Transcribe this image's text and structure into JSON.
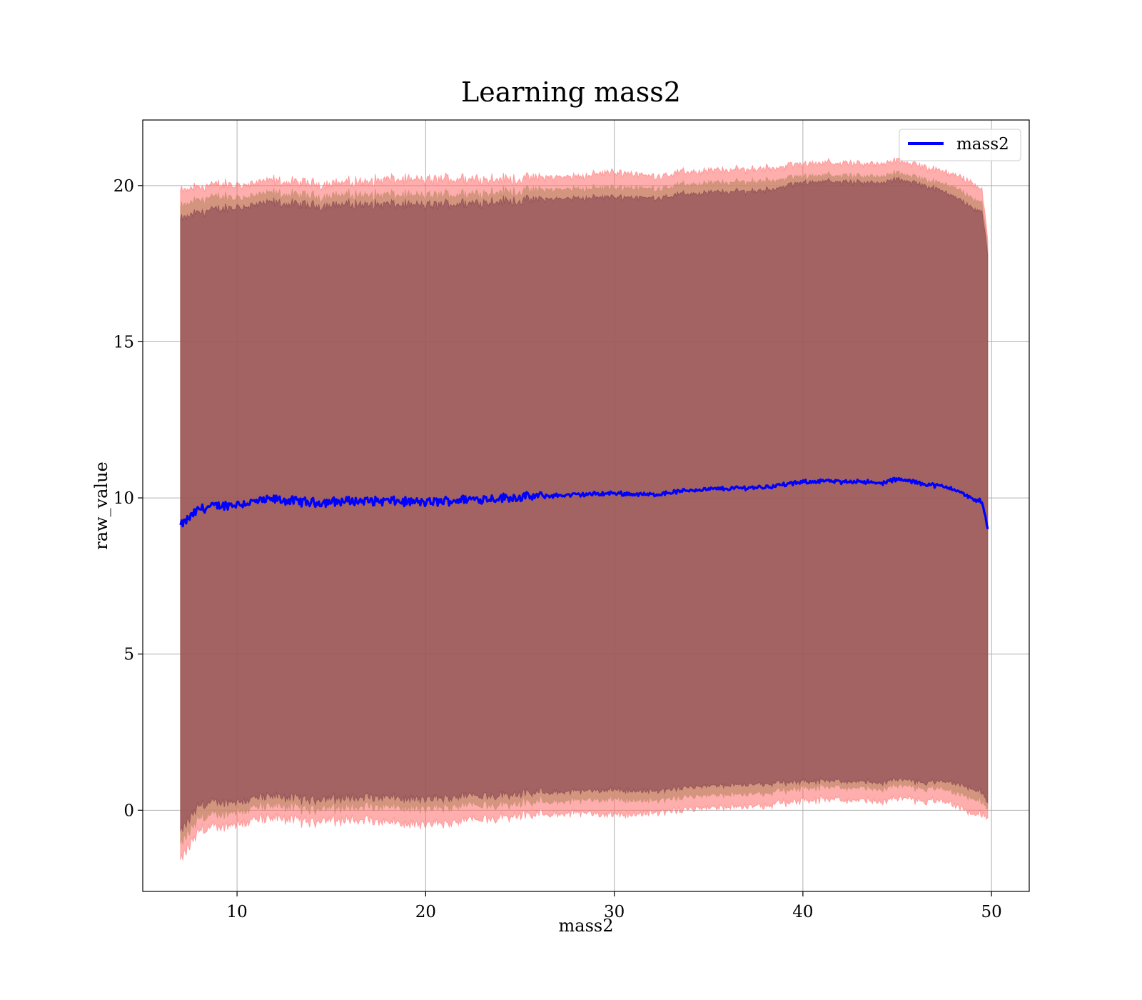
{
  "chart_data": {
    "type": "line",
    "title": "Learning mass2",
    "xlabel": "mass2",
    "ylabel": "raw_value",
    "xlim": [
      5,
      52
    ],
    "ylim": [
      -2.6,
      22.1
    ],
    "xticks": [
      10,
      20,
      30,
      40,
      50
    ],
    "yticks": [
      0,
      5,
      10,
      15,
      20
    ],
    "grid": true,
    "legend": {
      "placement": "top-right",
      "entries": [
        "mass2"
      ]
    },
    "colors": {
      "line": "#0000ff",
      "band_outer": "#ff6b6b",
      "band_middle": "#c28a6a",
      "band_inner": "#7a3a4a"
    },
    "x_range": [
      7,
      49.8
    ],
    "series": [
      {
        "name": "mass2",
        "x": [
          7,
          8,
          9,
          10,
          12,
          14,
          16,
          18,
          20,
          22,
          24,
          26,
          28,
          30,
          32,
          34,
          36,
          38,
          40,
          41,
          42,
          43,
          44,
          45,
          46,
          47,
          48,
          49,
          49.5,
          49.8
        ],
        "values": [
          9.1,
          9.65,
          9.75,
          9.8,
          9.95,
          9.85,
          9.9,
          9.9,
          9.85,
          9.95,
          10.0,
          10.05,
          10.1,
          10.15,
          10.1,
          10.25,
          10.3,
          10.35,
          10.5,
          10.55,
          10.5,
          10.55,
          10.45,
          10.6,
          10.5,
          10.4,
          10.3,
          9.95,
          9.9,
          9.0
        ],
        "band_outer_halfwidth": [
          10.7,
          10.3,
          10.3,
          10.2,
          10.2,
          10.2,
          10.2,
          10.3,
          10.3,
          10.3,
          10.2,
          10.2,
          10.2,
          10.3,
          10.2,
          10.2,
          10.2,
          10.2,
          10.2,
          10.2,
          10.2,
          10.2,
          10.2,
          10.2,
          10.2,
          10.1,
          10.1,
          10.1,
          10.0,
          9.3
        ],
        "band_middle_halfwidth": [
          10.2,
          9.9,
          9.9,
          9.8,
          9.8,
          9.8,
          9.8,
          9.8,
          9.8,
          9.8,
          9.8,
          9.8,
          9.8,
          9.8,
          9.8,
          9.8,
          9.8,
          9.8,
          9.8,
          9.8,
          9.8,
          9.8,
          9.8,
          9.8,
          9.8,
          9.7,
          9.7,
          9.6,
          9.6,
          9.0
        ],
        "band_inner_halfwidth": [
          9.8,
          9.5,
          9.5,
          9.5,
          9.5,
          9.5,
          9.5,
          9.5,
          9.5,
          9.5,
          9.5,
          9.5,
          9.5,
          9.5,
          9.5,
          9.5,
          9.5,
          9.5,
          9.6,
          9.6,
          9.6,
          9.6,
          9.6,
          9.6,
          9.6,
          9.5,
          9.4,
          9.3,
          9.3,
          8.8
        ]
      }
    ]
  }
}
